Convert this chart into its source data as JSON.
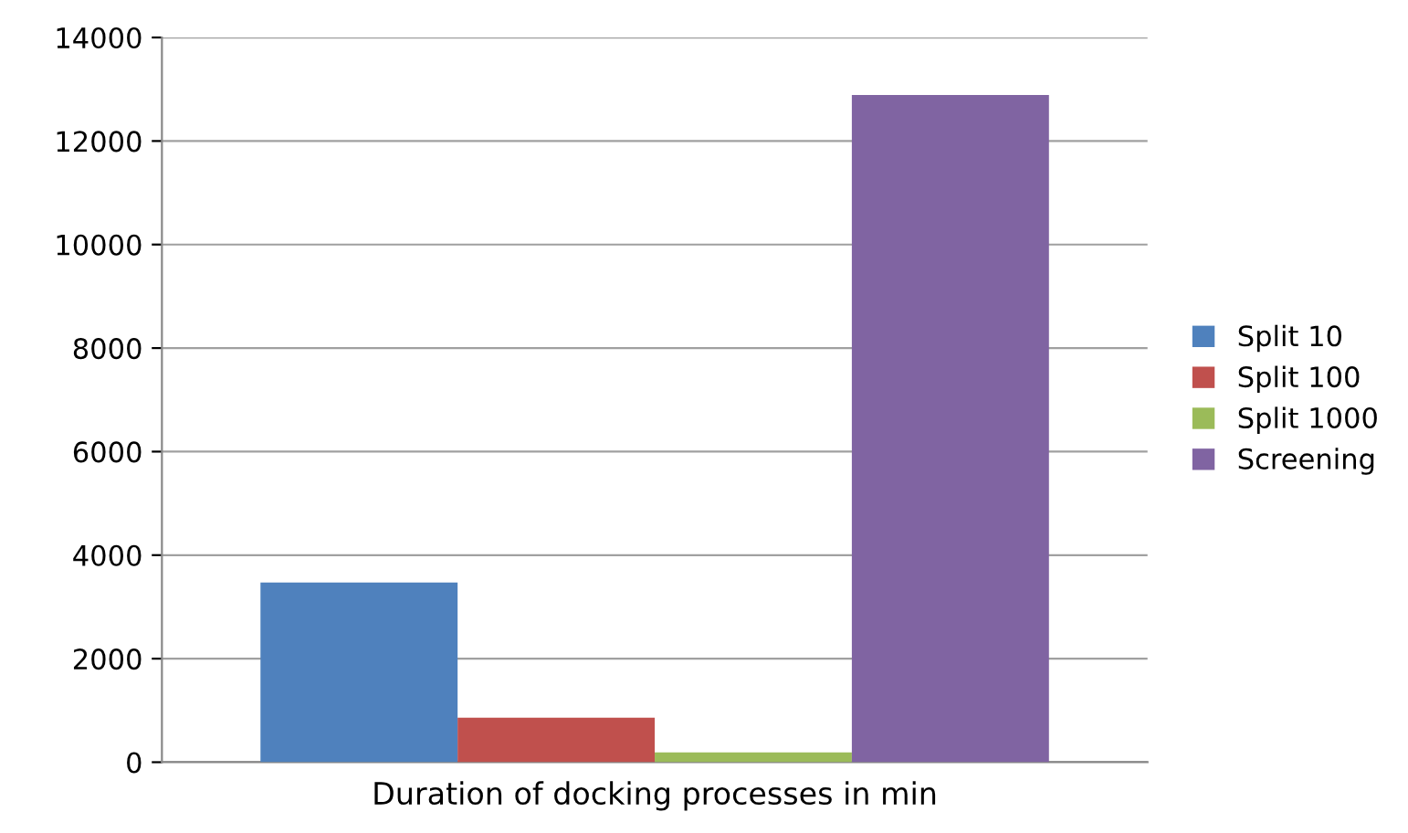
{
  "chart_data": {
    "type": "bar",
    "categories": [
      null
    ],
    "xlabel": "Duration of docking processes in min",
    "series": [
      {
        "name": "Split 10",
        "color": "#4f81bd",
        "values": [
          3470
        ]
      },
      {
        "name": "Split 100",
        "color": "#c0504d",
        "values": [
          860
        ]
      },
      {
        "name": "Split 1000",
        "color": "#9bbb59",
        "values": [
          190
        ]
      },
      {
        "name": "Screening",
        "color": "#8064a2",
        "values": [
          12890
        ]
      }
    ],
    "ylim": [
      0,
      14000
    ],
    "yticks": [
      0,
      2000,
      4000,
      6000,
      8000,
      10000,
      12000,
      14000
    ],
    "grid": "y",
    "legend": "right"
  }
}
